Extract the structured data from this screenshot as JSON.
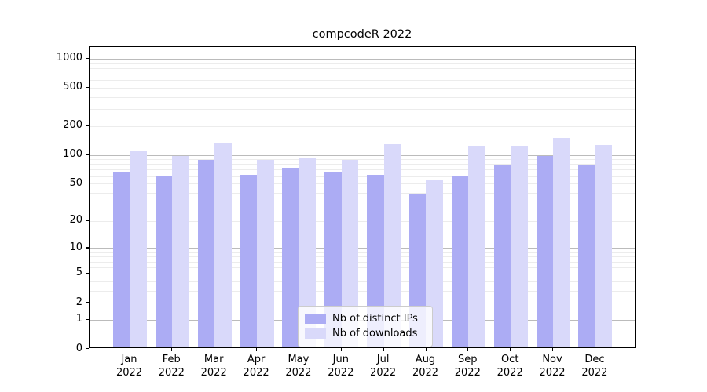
{
  "title": "compcodeR 2022",
  "colors": {
    "ips_bar": "#acacf4",
    "downloads_bar": "#d9d9fa",
    "grid_major": "#bbbbbb",
    "grid_minor": "#ececec",
    "axis": "#000000",
    "legend_border": "#cccccc"
  },
  "legend": {
    "items": [
      {
        "label": "Nb of distinct IPs",
        "series": "ips"
      },
      {
        "label": "Nb of downloads",
        "series": "downloads"
      }
    ]
  },
  "y_axis": {
    "scale": "log1p",
    "tick_labels": [
      "1000",
      "500",
      "200",
      "100",
      "50",
      "20",
      "10",
      "5",
      "2",
      "1",
      "0"
    ],
    "tick_values": [
      1000,
      500,
      200,
      100,
      50,
      20,
      10,
      5,
      2,
      1,
      0
    ],
    "major_gridlines": [
      1,
      10,
      100,
      1000
    ],
    "minor_gridlines": [
      2,
      3,
      4,
      5,
      6,
      7,
      8,
      9,
      20,
      30,
      40,
      50,
      60,
      70,
      80,
      90,
      200,
      300,
      400,
      500,
      600,
      700,
      800,
      900
    ]
  },
  "x_axis": {
    "months": [
      "Jan",
      "Feb",
      "Mar",
      "Apr",
      "May",
      "Jun",
      "Jul",
      "Aug",
      "Sep",
      "Oct",
      "Nov",
      "Dec"
    ],
    "year_label": "2022"
  },
  "chart_data": {
    "type": "bar",
    "title": "compcodeR 2022",
    "categories": [
      "Jan 2022",
      "Feb 2022",
      "Mar 2022",
      "Apr 2022",
      "May 2022",
      "Jun 2022",
      "Jul 2022",
      "Aug 2022",
      "Sep 2022",
      "Oct 2022",
      "Nov 2022",
      "Dec 2022"
    ],
    "series": [
      {
        "name": "Nb of distinct IPs",
        "color": "#acacf4",
        "values": [
          64,
          57,
          85,
          60,
          70,
          64,
          60,
          38,
          57,
          75,
          94,
          75
        ]
      },
      {
        "name": "Nb of downloads",
        "color": "#d9d9fa",
        "values": [
          105,
          93,
          127,
          86,
          89,
          86,
          124,
          53,
          119,
          120,
          145,
          121
        ]
      }
    ],
    "xlabel": "",
    "ylabel": "",
    "yscale": "log1p",
    "yticks": [
      0,
      1,
      2,
      5,
      10,
      20,
      50,
      100,
      200,
      500,
      1000
    ],
    "ylim": [
      0,
      1300
    ],
    "grid": "horizontal",
    "legend_position": "lower center inside plot"
  }
}
